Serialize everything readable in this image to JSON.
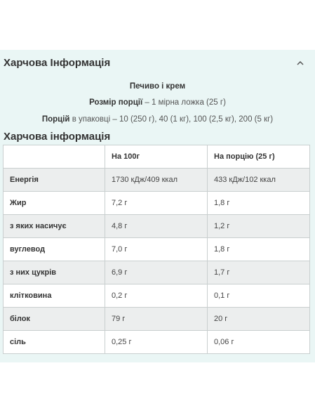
{
  "header": {
    "title": "Харчова Інформація",
    "toggle_icon": "chevron-up-icon"
  },
  "product": {
    "flavor": "Печиво і крем",
    "serving_size_label": "Розмір порції",
    "serving_size_value": "– 1 мірна ложка (25 г)",
    "servings_label": "Порцій",
    "servings_value": "в упаковці – 10 (250 г), 40 (1 кг), 100 (2,5 кг), 200 (5 кг)"
  },
  "nutrition": {
    "title": "Харчова інформація",
    "columns": [
      "",
      "На 100г",
      "На порцію (25 г)"
    ],
    "rows": [
      {
        "name": "Енергія",
        "per100": "1730 кДж/409 ккал",
        "perServing": "433 кДж/102 ккал"
      },
      {
        "name": "Жир",
        "per100": "7,2 г",
        "perServing": "1,8 г"
      },
      {
        "name": "з яких насичує",
        "per100": "4,8 г",
        "perServing": "1,2 г"
      },
      {
        "name": "вуглевод",
        "per100": "7,0 г",
        "perServing": "1,8 г"
      },
      {
        "name": "з них цукрів",
        "per100": "6,9 г",
        "perServing": "1,7 г"
      },
      {
        "name": "клітковина",
        "per100": "0,2 г",
        "perServing": "0,1 г"
      },
      {
        "name": "білок",
        "per100": "79 г",
        "perServing": "20 г"
      },
      {
        "name": "сіль",
        "per100": "0,25 г",
        "perServing": "0,06 г"
      }
    ]
  }
}
